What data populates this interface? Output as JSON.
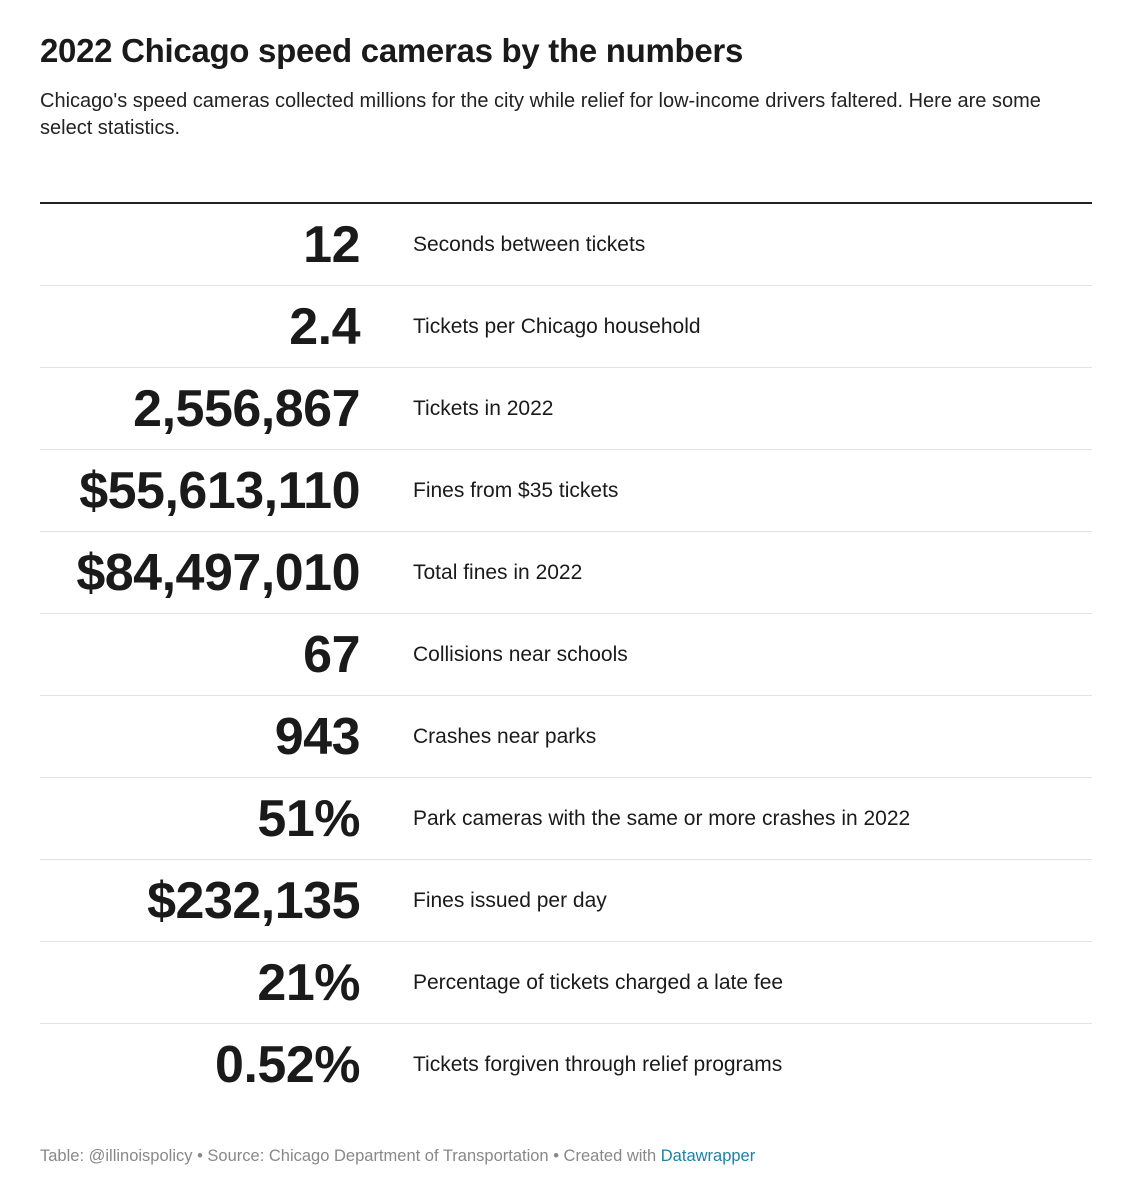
{
  "header": {
    "title": "2022 Chicago speed cameras by the numbers",
    "subtitle": "Chicago's speed cameras collected millions for the city while relief for low-income drivers faltered. Here are some select statistics."
  },
  "chart_data": {
    "type": "table",
    "title": "2022 Chicago speed cameras by the numbers",
    "columns": [
      "value",
      "description"
    ],
    "rows": [
      {
        "value": "12",
        "label": "Seconds between tickets"
      },
      {
        "value": "2.4",
        "label": "Tickets per Chicago household"
      },
      {
        "value": "2,556,867",
        "label": "Tickets in 2022"
      },
      {
        "value": "$55,613,110",
        "label": "Fines from $35 tickets"
      },
      {
        "value": "$84,497,010",
        "label": "Total fines in 2022"
      },
      {
        "value": "67",
        "label": "Collisions near schools"
      },
      {
        "value": "943",
        "label": "Crashes near parks"
      },
      {
        "value": "51%",
        "label": "Park cameras with the same or more crashes in 2022"
      },
      {
        "value": "$232,135",
        "label": "Fines issued per day"
      },
      {
        "value": "21%",
        "label": "Percentage of tickets charged a late fee"
      },
      {
        "value": "0.52%",
        "label": "Tickets forgiven through relief programs"
      }
    ]
  },
  "footer": {
    "text": "Table: @illinoispolicy • Source: Chicago Department of Transportation • Created with ",
    "link_label": "Datawrapper"
  },
  "colors": {
    "text": "#1a1a1a",
    "rule": "#222222",
    "row_divider": "#e3e3e3",
    "footer_text": "#888888",
    "link": "#1d81a2"
  }
}
